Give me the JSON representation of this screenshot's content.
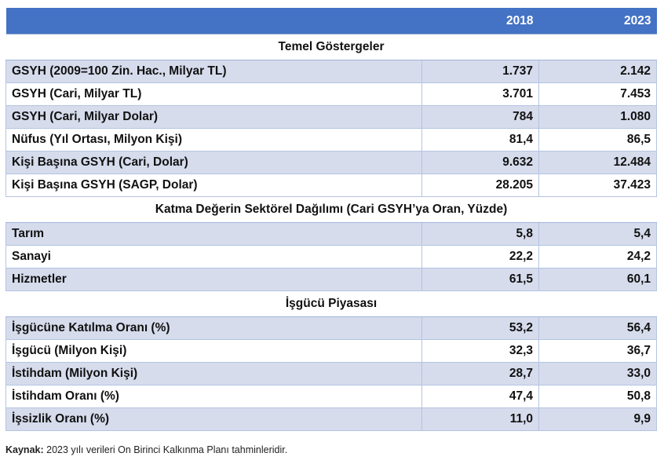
{
  "header": {
    "col_2018": "2018",
    "col_2023": "2023"
  },
  "sections": [
    {
      "title": "Temel Göstergeler",
      "rows": [
        {
          "label": "GSYH (2009=100 Zin. Hac., Milyar TL)",
          "v2018": "1.737",
          "v2023": "2.142"
        },
        {
          "label": "GSYH (Cari, Milyar TL)",
          "v2018": "3.701",
          "v2023": "7.453"
        },
        {
          "label": "GSYH (Cari, Milyar Dolar)",
          "v2018": "784",
          "v2023": "1.080"
        },
        {
          "label": "Nüfus (Yıl Ortası, Milyon Kişi)",
          "v2018": "81,4",
          "v2023": "86,5"
        },
        {
          "label": "Kişi Başına GSYH (Cari, Dolar)",
          "v2018": "9.632",
          "v2023": "12.484"
        },
        {
          "label": "Kişi Başına GSYH (SAGP, Dolar)",
          "v2018": "28.205",
          "v2023": "37.423"
        }
      ]
    },
    {
      "title": "Katma Değerin Sektörel Dağılımı (Cari GSYH’ya Oran, Yüzde)",
      "rows": [
        {
          "label": "Tarım",
          "v2018": "5,8",
          "v2023": "5,4"
        },
        {
          "label": "Sanayi",
          "v2018": "22,2",
          "v2023": "24,2"
        },
        {
          "label": "Hizmetler",
          "v2018": "61,5",
          "v2023": "60,1"
        }
      ]
    },
    {
      "title": "İşgücü Piyasası",
      "rows": [
        {
          "label": "İşgücüne Katılma Oranı (%)",
          "v2018": "53,2",
          "v2023": "56,4"
        },
        {
          "label": "İşgücü (Milyon Kişi)",
          "v2018": "32,3",
          "v2023": "36,7"
        },
        {
          "label": "İstihdam (Milyon Kişi)",
          "v2018": "28,7",
          "v2023": "33,0"
        },
        {
          "label": "İstihdam Oranı (%)",
          "v2018": "47,4",
          "v2023": "50,8"
        },
        {
          "label": "İşsizlik Oranı (%)",
          "v2018": "11,0",
          "v2023": "9,9"
        }
      ]
    }
  ],
  "footnote": {
    "label": "Kaynak:",
    "text": " 2023 yılı verileri On Birinci Kalkınma Planı tahminleridir."
  },
  "colors": {
    "header_bg": "#4472c4",
    "row_band": "#d6dcec"
  }
}
